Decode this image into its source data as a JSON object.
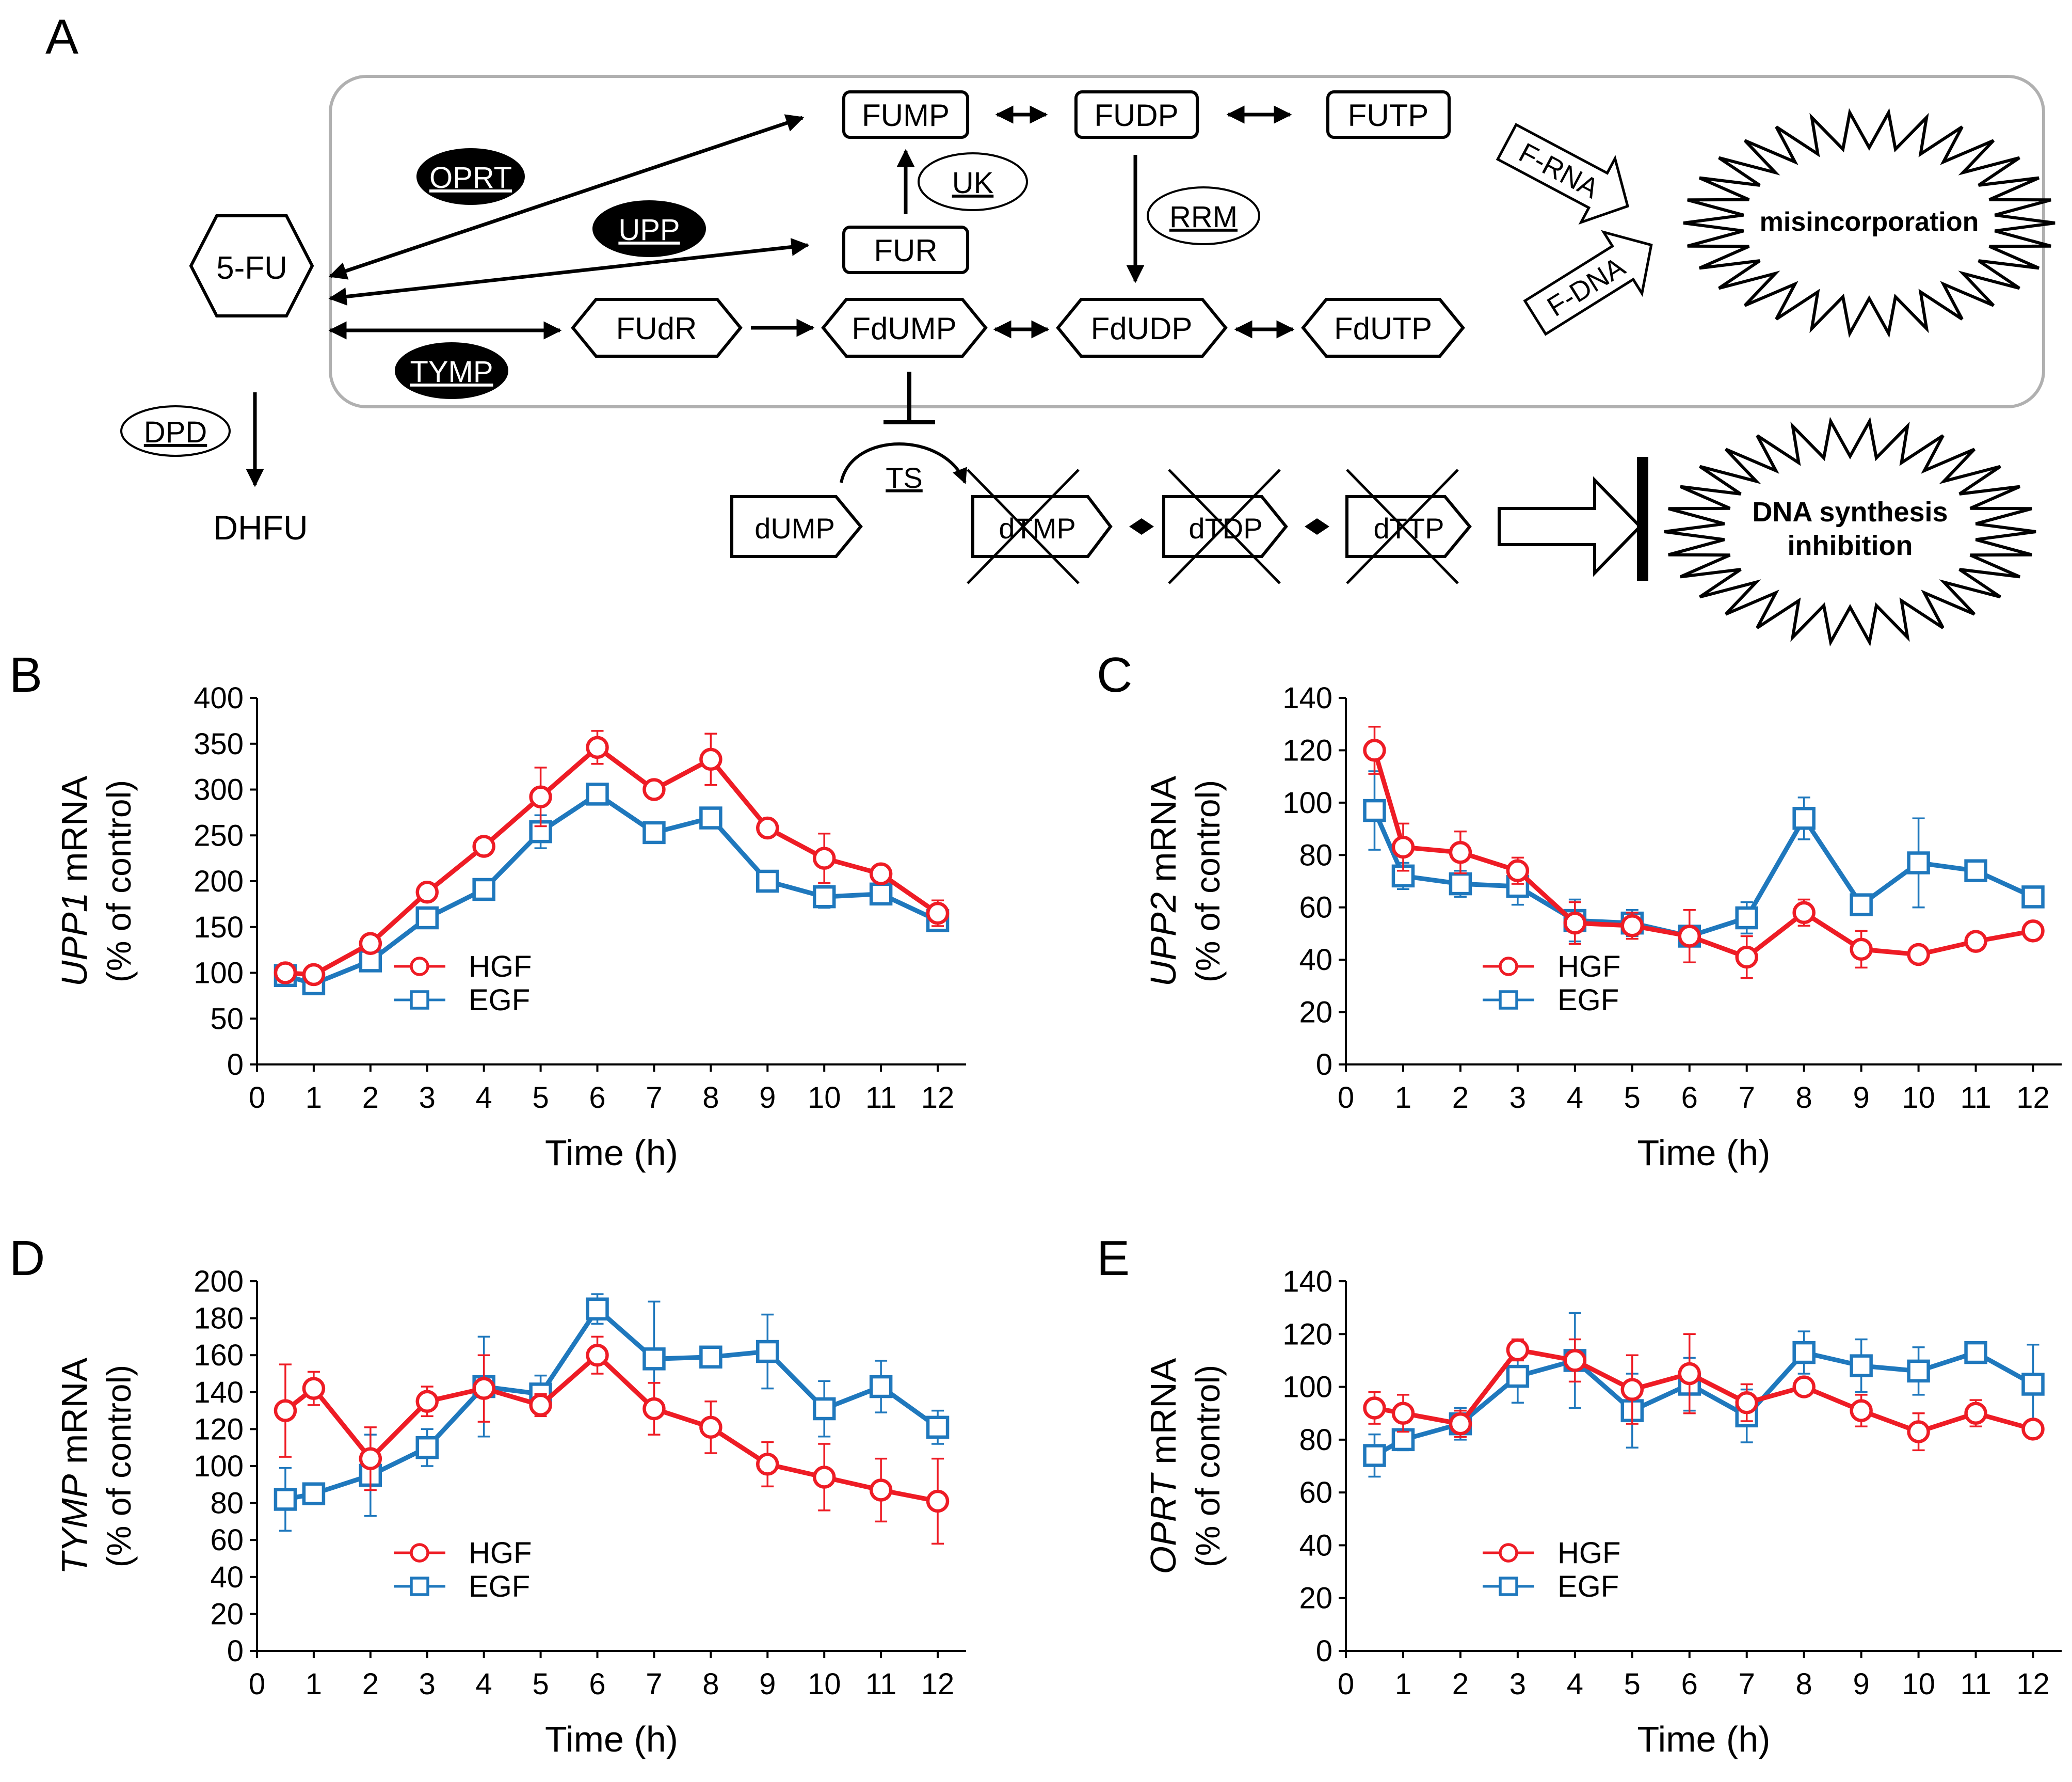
{
  "colors": {
    "hgf": "#ee1c25",
    "egf": "#1f78bd",
    "ink": "#000000",
    "box": "#b0b0b0"
  },
  "panel_a": {
    "letter": "A",
    "nodes": {
      "fu5": "5-FU",
      "dhfu": "DHFU",
      "fump": "FUMP",
      "fudp": "FUDP",
      "futp": "FUTP",
      "fur": "FUR",
      "fudr": "FUdR",
      "fdump": "FdUMP",
      "fdudp": "FdUDP",
      "fdutp": "FdUTP",
      "dump": "dUMP",
      "dtmp": "dTMP",
      "dtdp": "dTDP",
      "dttp": "dTTP"
    },
    "enzymes": {
      "oprt": "OPRT",
      "upp": "UPP",
      "tymp": "TYMP",
      "uk": "UK",
      "rrm": "RRM",
      "dpd": "DPD",
      "ts": "TS"
    },
    "arrows": {
      "frna": "F-RNA",
      "fdna": "F-DNA"
    },
    "burst_top": "misincorporation",
    "burst_bottom_line1": "DNA synthesis",
    "burst_bottom_line2": "inhibition"
  },
  "chart_data": [
    {
      "panel": "B",
      "type": "line",
      "gene": "UPP1",
      "ylabel_suffix": " mRNA",
      "ylabel2": "(% of control)",
      "xlabel": "Time (h)",
      "xlim": [
        0,
        12.5
      ],
      "ylim": [
        0,
        400
      ],
      "ystep": 50,
      "xticks": [
        0,
        1,
        2,
        3,
        4,
        5,
        6,
        7,
        8,
        9,
        10,
        11,
        12
      ],
      "x": [
        0.5,
        1,
        2,
        3,
        4,
        5,
        6,
        7,
        8,
        9,
        10,
        11,
        12
      ],
      "series": [
        {
          "name": "HGF",
          "marker": "circle",
          "values": [
            100,
            98,
            132,
            188,
            238,
            292,
            346,
            300,
            333,
            258,
            225,
            208,
            165
          ],
          "err": [
            5,
            5,
            6,
            6,
            6,
            32,
            18,
            4,
            28,
            5,
            27,
            10,
            14
          ]
        },
        {
          "name": "EGF",
          "marker": "square",
          "values": [
            97,
            88,
            113,
            160,
            191,
            254,
            295,
            253,
            269,
            200,
            183,
            186,
            157
          ],
          "err": [
            5,
            5,
            6,
            6,
            6,
            18,
            6,
            6,
            6,
            5,
            12,
            6,
            6
          ]
        }
      ]
    },
    {
      "panel": "C",
      "type": "line",
      "gene": "UPP2",
      "ylabel_suffix": " mRNA",
      "ylabel2": "(% of control)",
      "xlabel": "Time (h)",
      "xlim": [
        0,
        12.5
      ],
      "ylim": [
        0,
        140
      ],
      "ystep": 20,
      "xticks": [
        0,
        1,
        2,
        3,
        4,
        5,
        6,
        7,
        8,
        9,
        10,
        11,
        12
      ],
      "x": [
        0.5,
        1,
        2,
        3,
        4,
        5,
        6,
        7,
        8,
        9,
        10,
        11,
        12
      ],
      "series": [
        {
          "name": "HGF",
          "marker": "circle",
          "values": [
            120,
            83,
            81,
            74,
            54,
            53,
            49,
            41,
            58,
            44,
            42,
            47,
            51
          ],
          "err": [
            9,
            9,
            8,
            5,
            8,
            5,
            10,
            8,
            5,
            7,
            2,
            2,
            3
          ]
        },
        {
          "name": "EGF",
          "marker": "square",
          "values": [
            97,
            72,
            69,
            68,
            55,
            54,
            49,
            56,
            94,
            61,
            77,
            74,
            64
          ],
          "err": [
            15,
            5,
            5,
            7,
            8,
            5,
            10,
            6,
            8,
            3,
            17,
            2,
            3
          ]
        }
      ]
    },
    {
      "panel": "D",
      "type": "line",
      "gene": "TYMP",
      "ylabel_suffix": " mRNA",
      "ylabel2": "(% of control)",
      "xlabel": "Time (h)",
      "xlim": [
        0,
        12.5
      ],
      "ylim": [
        0,
        200
      ],
      "ystep": 20,
      "xticks": [
        0,
        1,
        2,
        3,
        4,
        5,
        6,
        7,
        8,
        9,
        10,
        11,
        12
      ],
      "x": [
        0.5,
        1,
        2,
        3,
        4,
        5,
        6,
        7,
        8,
        9,
        10,
        11,
        12
      ],
      "series": [
        {
          "name": "HGF",
          "marker": "circle",
          "values": [
            130,
            142,
            104,
            135,
            142,
            133,
            160,
            131,
            121,
            101,
            94,
            87,
            81
          ],
          "err": [
            25,
            9,
            17,
            8,
            18,
            6,
            10,
            14,
            14,
            12,
            18,
            17,
            23
          ]
        },
        {
          "name": "EGF",
          "marker": "square",
          "values": [
            82,
            85,
            95,
            110,
            143,
            139,
            185,
            158,
            159,
            162,
            131,
            143,
            121
          ],
          "err": [
            17,
            4,
            22,
            10,
            27,
            10,
            8,
            31,
            3,
            20,
            15,
            14,
            9
          ]
        }
      ]
    },
    {
      "panel": "E",
      "type": "line",
      "gene": "OPRT",
      "ylabel_suffix": " mRNA",
      "ylabel2": "(% of control)",
      "xlabel": "Time (h)",
      "xlim": [
        0,
        12.5
      ],
      "ylim": [
        0,
        140
      ],
      "ystep": 20,
      "xticks": [
        0,
        1,
        2,
        3,
        4,
        5,
        6,
        7,
        8,
        9,
        10,
        11,
        12
      ],
      "x": [
        0.5,
        1,
        2,
        3,
        4,
        5,
        6,
        7,
        8,
        9,
        10,
        11,
        12
      ],
      "series": [
        {
          "name": "HGF",
          "marker": "circle",
          "values": [
            92,
            90,
            86,
            114,
            110,
            99,
            105,
            94,
            100,
            91,
            83,
            90,
            84
          ],
          "err": [
            6,
            7,
            5,
            4,
            8,
            13,
            15,
            7,
            3,
            6,
            7,
            5,
            2
          ]
        },
        {
          "name": "EGF",
          "marker": "square",
          "values": [
            74,
            80,
            86,
            104,
            110,
            91,
            101,
            89,
            113,
            108,
            106,
            113,
            101
          ],
          "err": [
            8,
            4,
            6,
            10,
            18,
            14,
            10,
            10,
            8,
            10,
            9,
            2,
            15
          ]
        }
      ]
    }
  ]
}
